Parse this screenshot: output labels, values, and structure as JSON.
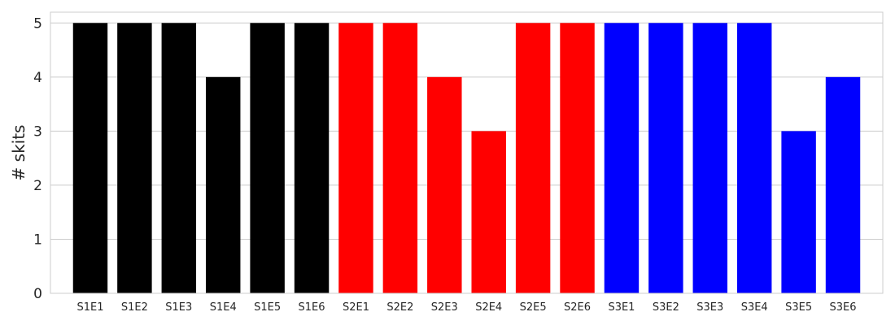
{
  "chart_data": {
    "type": "bar",
    "title": "",
    "xlabel": "",
    "ylabel": "# skits",
    "ylim": [
      0,
      5.2
    ],
    "yticks": [
      0,
      1,
      2,
      3,
      4,
      5
    ],
    "grid": "y",
    "categories": [
      "S1E1",
      "S1E2",
      "S1E3",
      "S1E4",
      "S1E5",
      "S1E6",
      "S2E1",
      "S2E2",
      "S2E3",
      "S2E4",
      "S2E5",
      "S2E6",
      "S3E1",
      "S3E2",
      "S3E3",
      "S3E4",
      "S3E5",
      "S3E6"
    ],
    "values": [
      5,
      5,
      5,
      4,
      5,
      5,
      5,
      5,
      4,
      3,
      5,
      5,
      5,
      5,
      5,
      5,
      3,
      4
    ],
    "bar_colors": [
      "#000000",
      "#000000",
      "#000000",
      "#000000",
      "#000000",
      "#000000",
      "#ff0000",
      "#ff0000",
      "#ff0000",
      "#ff0000",
      "#ff0000",
      "#ff0000",
      "#0000ff",
      "#0000ff",
      "#0000ff",
      "#0000ff",
      "#0000ff",
      "#0000ff"
    ],
    "gridline_color": "#cccccc",
    "frame_color": "#cccccc"
  }
}
